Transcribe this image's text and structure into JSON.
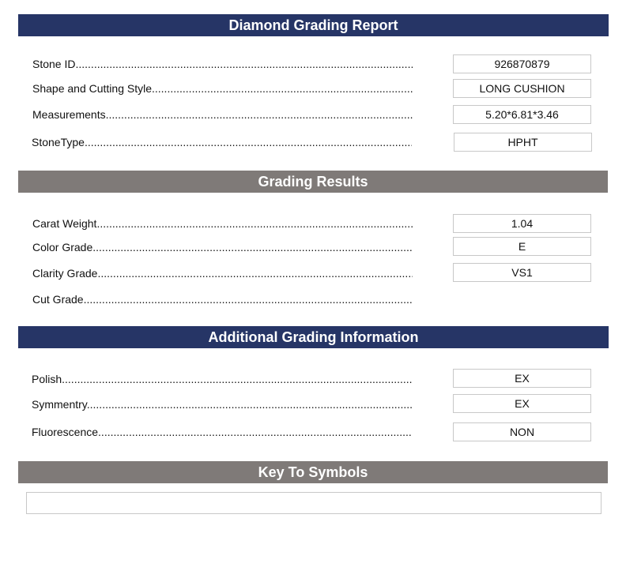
{
  "report": {
    "title": "Diamond Grading Report",
    "rows": [
      {
        "label": "Stone ID",
        "value": "926870879"
      },
      {
        "label": "Shape and Cutting Style",
        "value": "LONG CUSHION"
      },
      {
        "label": "Measurements",
        "value": "5.20*6.81*3.46"
      },
      {
        "label": "StoneType",
        "value": "HPHT"
      }
    ]
  },
  "grading": {
    "title": "Grading Results",
    "rows": [
      {
        "label": "Carat Weight",
        "value": "1.04"
      },
      {
        "label": "Color Grade",
        "value": "E"
      },
      {
        "label": "Clarity Grade",
        "value": "VS1"
      },
      {
        "label": "Cut Grade"
      }
    ]
  },
  "additional": {
    "title": "Additional Grading Information",
    "rows": [
      {
        "label": "Polish",
        "value": "EX"
      },
      {
        "label": "Symmentry",
        "value": "EX"
      },
      {
        "label": "Fluorescence",
        "value": "NON"
      }
    ]
  },
  "key": {
    "title": "Key To Symbols"
  },
  "colors": {
    "navy": "#263566",
    "gray": "#7f7a78"
  }
}
